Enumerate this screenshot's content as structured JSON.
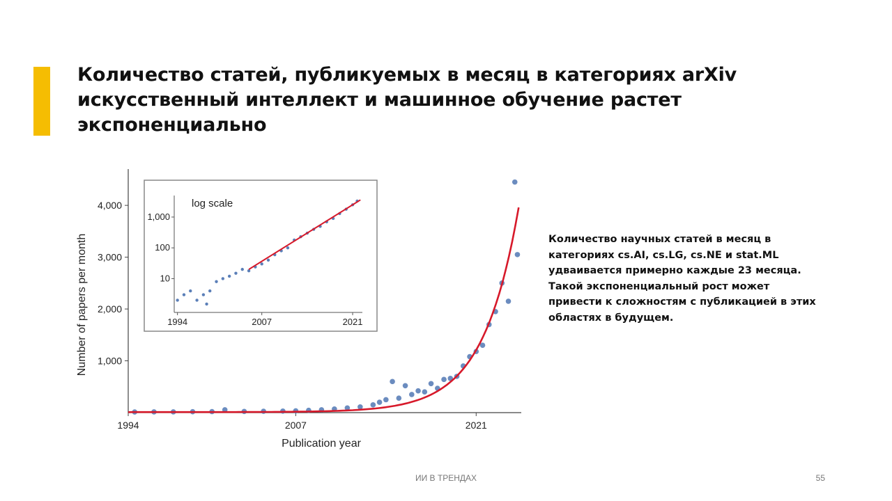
{
  "slide": {
    "title_lines": [
      "Количество статей, публикуемых в месяц в категориях arXiv",
      "искусственный интеллект и машинное обучение растет",
      "экспоненциально"
    ],
    "description_lines": [
      "Количество научных статей в месяц в",
      "категориях cs.AI, cs.LG, cs.NE и stat.ML",
      "удваивается примерно каждые 23 месяца.",
      "Такой экспоненциальный рост может",
      "привести к сложностям с публикацией в этих",
      "областях в будущем."
    ],
    "footer_label": "ИИ В ТРЕНДАХ",
    "page_number": "55",
    "accent_color": "#f5bd02"
  },
  "chart_data": [
    {
      "type": "scatter",
      "xlabel": "Publication year",
      "ylabel": "Number of papers per month",
      "xlim": [
        1994,
        2024.5
      ],
      "ylim": [
        0,
        4700
      ],
      "xticks": [
        1994,
        2007,
        2021
      ],
      "xtick_labels": [
        "1994",
        "2007",
        "2021"
      ],
      "yticks": [
        1000,
        2000,
        3000,
        4000
      ],
      "ytick_labels": [
        "1,000",
        "2,000",
        "3,000",
        "4,000"
      ],
      "grid": false,
      "legend": "none",
      "point_color": "#5b7fb8",
      "fit_color": "#d7192a",
      "fit": {
        "model": "exponential",
        "doubling_months": 23,
        "x_start": 1994,
        "x_end": 2024.3,
        "y_at_2024_3": 3950
      },
      "series": [
        {
          "x": [
            1994.5,
            1996,
            1997.5,
            1999,
            2000.5,
            2001.5,
            2003,
            2004.5,
            2006,
            2007,
            2008,
            2009,
            2010,
            2011,
            2012,
            2013,
            2013.5,
            2014,
            2014.5,
            2015,
            2015.5,
            2016,
            2016.5,
            2017,
            2017.5,
            2018,
            2018.5,
            2019,
            2019.5,
            2020,
            2020.5,
            2021,
            2021.5,
            2022,
            2022.5,
            2023,
            2023.5,
            2024,
            2024.2
          ],
          "y": [
            12,
            14,
            15,
            18,
            20,
            55,
            22,
            26,
            30,
            35,
            45,
            55,
            70,
            90,
            110,
            150,
            200,
            250,
            600,
            280,
            520,
            350,
            420,
            400,
            560,
            470,
            640,
            660,
            700,
            900,
            1080,
            1180,
            1300,
            1700,
            1950,
            2500,
            2150,
            4450,
            3050
          ]
        }
      ]
    },
    {
      "type": "scatter",
      "title": "log scale",
      "yscale": "log",
      "xlim": [
        1993.5,
        2022.5
      ],
      "ylim": [
        0.8,
        5000
      ],
      "xticks": [
        1994,
        2007,
        2021
      ],
      "xtick_labels": [
        "1994",
        "2007",
        "2021"
      ],
      "yticks": [
        10,
        100,
        1000
      ],
      "ytick_labels": [
        "10",
        "100",
        "1,000"
      ],
      "grid": false,
      "point_color": "#5b7fb8",
      "fit_color": "#d7192a",
      "fit": {
        "x_start": 2005,
        "x_end": 2022.2,
        "y_start": 20,
        "y_end": 3600
      },
      "series": [
        {
          "x": [
            1994,
            1995,
            1996,
            1997,
            1998,
            1998.5,
            1999,
            2000,
            2001,
            2002,
            2003,
            2004,
            2005,
            2006,
            2007,
            2008,
            2009,
            2010,
            2011,
            2012,
            2013,
            2014,
            2015,
            2016,
            2017,
            2018,
            2019,
            2020,
            2021,
            2021.7
          ],
          "y": [
            2,
            3,
            4,
            2,
            3,
            1.5,
            4,
            8,
            10,
            12,
            15,
            20,
            18,
            24,
            30,
            40,
            60,
            80,
            100,
            180,
            230,
            300,
            400,
            500,
            700,
            900,
            1300,
            1800,
            2500,
            3300
          ]
        }
      ]
    }
  ]
}
